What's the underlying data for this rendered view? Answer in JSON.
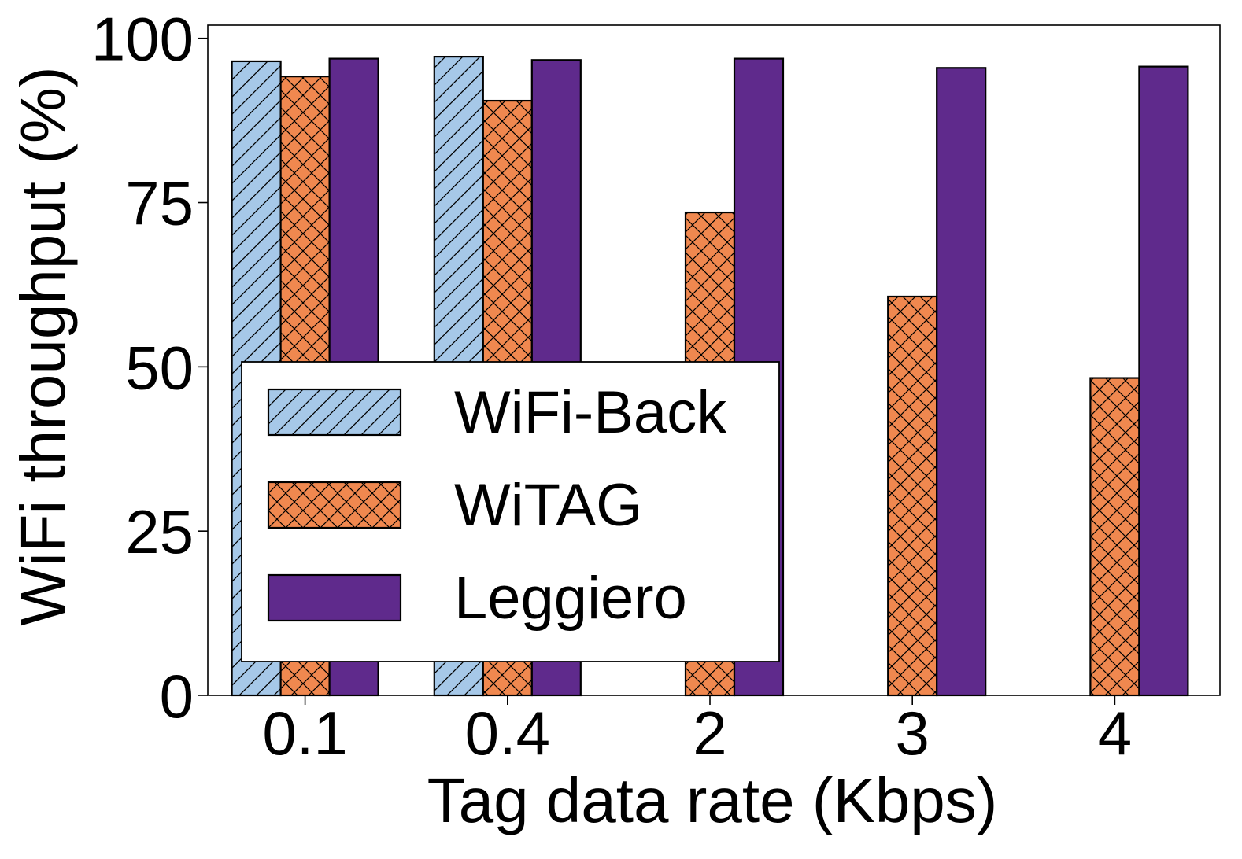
{
  "chart_data": {
    "type": "bar",
    "title": "",
    "xlabel": "Tag data rate (Kbps)",
    "ylabel": "WiFi throughput (%)",
    "categories": [
      "0.1",
      "0.4",
      "2",
      "3",
      "4"
    ],
    "ylim": [
      0,
      102
    ],
    "yticks": [
      "0",
      "25",
      "50",
      "75",
      "100"
    ],
    "ytick_values": [
      0,
      25,
      50,
      75,
      100
    ],
    "grid": false,
    "legend_position": "center-left",
    "series": [
      {
        "name": "WiFi-Back",
        "values": [
          96.5,
          97.2,
          0,
          0,
          0
        ],
        "color": "#a6c8e8",
        "pattern": "diagonal-hatch"
      },
      {
        "name": "WiTAG",
        "values": [
          94.2,
          90.5,
          73.5,
          60.7,
          48.3
        ],
        "color": "#f0884f",
        "pattern": "cross-hatch"
      },
      {
        "name": "Leggiero",
        "values": [
          96.9,
          96.7,
          96.9,
          95.5,
          95.7
        ],
        "color": "#5f2a8c",
        "pattern": "solid"
      }
    ]
  }
}
